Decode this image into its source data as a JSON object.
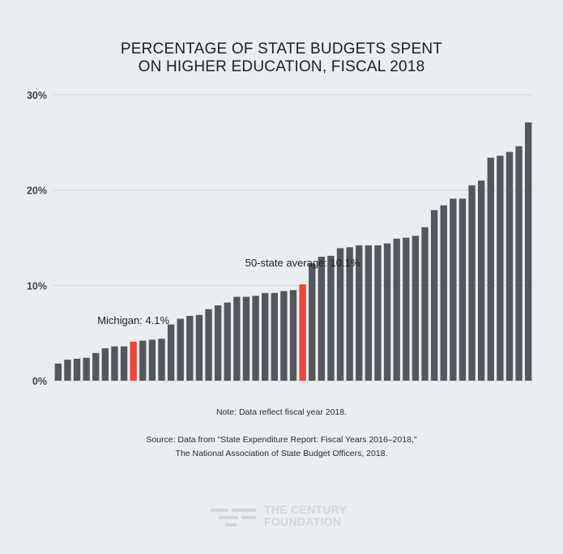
{
  "title_lines": [
    "PERCENTAGE OF STATE BUDGETS SPENT",
    "ON HIGHER EDUCATION, FISCAL 2018"
  ],
  "note": "Note: Data reflect fiscal year 2018.",
  "source_lines": [
    "Source: Data from \"State Expenditure Report: Fiscal Years 2016–2018,\"",
    "The National Association of State Budget Officers, 2018."
  ],
  "logo": {
    "line1": "THE CENTURY",
    "line2": "FOUNDATION",
    "icon": "century-foundation-logo-icon"
  },
  "colors": {
    "bar": "#54575e",
    "highlight": "#e8473a",
    "grid": "#d0d3d6",
    "background": "#ebeef0"
  },
  "chart_data": {
    "type": "bar",
    "title": "PERCENTAGE OF STATE BUDGETS SPENT ON HIGHER EDUCATION, FISCAL 2018",
    "ylim": [
      0,
      30
    ],
    "yticks": [
      0,
      10,
      20,
      30
    ],
    "ytick_labels": [
      "0%",
      "10%",
      "20%",
      "30%"
    ],
    "grid": true,
    "values": [
      1.8,
      2.2,
      2.3,
      2.4,
      2.9,
      3.4,
      3.6,
      3.6,
      4.1,
      4.2,
      4.3,
      4.4,
      5.9,
      6.5,
      6.8,
      6.9,
      7.5,
      7.9,
      8.2,
      8.8,
      8.8,
      8.9,
      9.2,
      9.2,
      9.4,
      9.5,
      10.1,
      12.3,
      13.0,
      13.1,
      13.9,
      14.0,
      14.2,
      14.2,
      14.2,
      14.4,
      14.9,
      15.0,
      15.2,
      16.1,
      17.9,
      18.4,
      19.1,
      19.1,
      20.5,
      21.0,
      23.4,
      23.6,
      24.0,
      24.6,
      27.1
    ],
    "highlighted": [
      {
        "index": 8,
        "label": "Michigan: 4.1%"
      },
      {
        "index": 26,
        "label": "50-state average: 10.1%"
      }
    ]
  }
}
